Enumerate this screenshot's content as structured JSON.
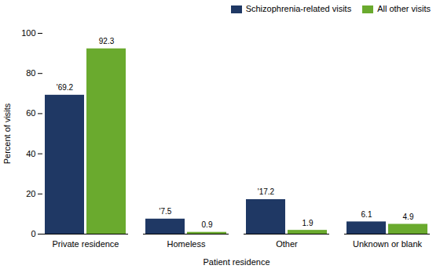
{
  "chart_data": {
    "type": "bar",
    "xlabel": "Patient residence",
    "ylabel": "Percent of visits",
    "categories": [
      "Private residence",
      "Homeless",
      "Other",
      "Unknown or blank"
    ],
    "series": [
      {
        "name": "Schizophrenia-related visits",
        "color": "#1f3864",
        "values": [
          69.2,
          7.5,
          17.2,
          6.1
        ],
        "value_labels": [
          "'69.2",
          "'7.5",
          "'17.2",
          "6.1"
        ]
      },
      {
        "name": "All other visits",
        "color": "#6aaa2e",
        "values": [
          92.3,
          0.9,
          1.9,
          4.9
        ],
        "value_labels": [
          "92.3",
          "0.9",
          "1.9",
          "4.9"
        ]
      }
    ],
    "ylim": [
      0,
      100
    ],
    "yticks": [
      0,
      20,
      40,
      60,
      80,
      100
    ],
    "grid": false,
    "legend": "upper right",
    "data_labels": true
  }
}
